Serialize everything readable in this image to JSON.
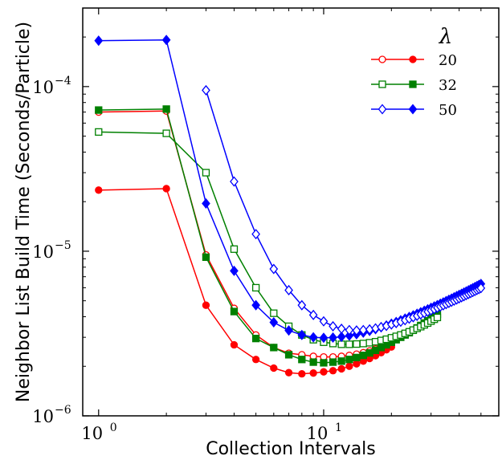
{
  "chart_data": {
    "type": "line",
    "xlabel": "Collection Intervals",
    "ylabel": "Neighbor List Build Time (Seconds/Particle)",
    "xscale": "log",
    "yscale": "log",
    "xlim": [
      0.85,
      60
    ],
    "ylim": [
      1e-06,
      0.0003
    ],
    "x_ticks": [
      {
        "base": "10",
        "exp": "0",
        "value": 1
      },
      {
        "base": "10",
        "exp": "1",
        "value": 10
      }
    ],
    "y_ticks": [
      {
        "base": "10",
        "exp": "−6",
        "value": 1e-06
      },
      {
        "base": "10",
        "exp": "−5",
        "value": 1e-05
      },
      {
        "base": "10",
        "exp": "−4",
        "value": 0.0001
      }
    ],
    "legend": {
      "title": "λ",
      "position": "top-right",
      "labels": [
        "20",
        "32",
        "50"
      ]
    },
    "series": [
      {
        "name": "20",
        "color": "#ff0000",
        "marker": "circle",
        "open": {
          "x": [
            1,
            2,
            3,
            4,
            5,
            6,
            7,
            8,
            9,
            10,
            11,
            12,
            13,
            14,
            15,
            16,
            17,
            18,
            19,
            20
          ],
          "y": [
            7e-05,
            7.1e-05,
            9.5e-06,
            4.5e-06,
            3.1e-06,
            2.6e-06,
            2.4e-06,
            2.35e-06,
            2.3e-06,
            2.28e-06,
            2.28e-06,
            2.3e-06,
            2.33e-06,
            2.37e-06,
            2.42e-06,
            2.48e-06,
            2.55e-06,
            2.62e-06,
            2.7e-06,
            2.8e-06
          ]
        },
        "filled": {
          "x": [
            1,
            2,
            3,
            4,
            5,
            6,
            7,
            8,
            9,
            10,
            11,
            12,
            13,
            14,
            15,
            16,
            17,
            18,
            19,
            20
          ],
          "y": [
            2.35e-05,
            2.4e-05,
            4.7e-06,
            2.7e-06,
            2.2e-06,
            1.95e-06,
            1.83e-06,
            1.8e-06,
            1.82e-06,
            1.85e-06,
            1.88e-06,
            1.93e-06,
            2e-06,
            2.07e-06,
            2.15e-06,
            2.23e-06,
            2.32e-06,
            2.42e-06,
            2.52e-06,
            2.62e-06
          ]
        }
      },
      {
        "name": "32",
        "color": "#008000",
        "marker": "square",
        "open": {
          "x": [
            1,
            2,
            3,
            4,
            5,
            6,
            7,
            8,
            9,
            10,
            11,
            12,
            13,
            14,
            15,
            16,
            17,
            18,
            19,
            20,
            21,
            22,
            23,
            24,
            25,
            26,
            27,
            28,
            29,
            30,
            31,
            32
          ],
          "y": [
            5.3e-05,
            5.2e-05,
            3e-05,
            1.03e-05,
            6e-06,
            4.2e-06,
            3.5e-06,
            3.1e-06,
            2.9e-06,
            2.8e-06,
            2.75e-06,
            2.72e-06,
            2.72e-06,
            2.73e-06,
            2.75e-06,
            2.78e-06,
            2.82e-06,
            2.87e-06,
            2.92e-06,
            2.98e-06,
            3.04e-06,
            3.1e-06,
            3.17e-06,
            3.24e-06,
            3.32e-06,
            3.4e-06,
            3.48e-06,
            3.57e-06,
            3.66e-06,
            3.76e-06,
            3.86e-06,
            3.96e-06
          ]
        },
        "filled": {
          "x": [
            1,
            2,
            3,
            4,
            5,
            6,
            7,
            8,
            9,
            10,
            11,
            12,
            13,
            14,
            15,
            16,
            17,
            18,
            19,
            20,
            21,
            22,
            23,
            24,
            25,
            26,
            27,
            28,
            29,
            30,
            31,
            32
          ],
          "y": [
            7.2e-05,
            7.3e-05,
            9.2e-06,
            4.3e-06,
            2.95e-06,
            2.6e-06,
            2.35e-06,
            2.2e-06,
            2.12e-06,
            2.1e-06,
            2.12e-06,
            2.15e-06,
            2.2e-06,
            2.26e-06,
            2.33e-06,
            2.41e-06,
            2.5e-06,
            2.6e-06,
            2.7e-06,
            2.8e-06,
            2.9e-06,
            3e-06,
            3.1e-06,
            3.2e-06,
            3.31e-06,
            3.42e-06,
            3.54e-06,
            3.66e-06,
            3.78e-06,
            3.9e-06,
            4.02e-06,
            4.14e-06
          ]
        }
      },
      {
        "name": "50",
        "color": "#0000ff",
        "marker": "diamond",
        "open": {
          "x": [
            3,
            4,
            5,
            6,
            7,
            8,
            9,
            10,
            11,
            12,
            13,
            14,
            15,
            16,
            17,
            18,
            19,
            20,
            21,
            22,
            23,
            24,
            25,
            26,
            27,
            28,
            29,
            30,
            31,
            32,
            33,
            34,
            35,
            36,
            37,
            38,
            39,
            40,
            41,
            42,
            43,
            44,
            45,
            46,
            47,
            48,
            49,
            50
          ],
          "y": [
            9.5e-05,
            2.65e-05,
            1.27e-05,
            7.8e-06,
            5.8e-06,
            4.7e-06,
            4.1e-06,
            3.75e-06,
            3.5e-06,
            3.38e-06,
            3.32e-06,
            3.3e-06,
            3.32e-06,
            3.35e-06,
            3.4e-06,
            3.46e-06,
            3.52e-06,
            3.59e-06,
            3.66e-06,
            3.73e-06,
            3.81e-06,
            3.89e-06,
            3.97e-06,
            4.05e-06,
            4.13e-06,
            4.21e-06,
            4.29e-06,
            4.37e-06,
            4.45e-06,
            4.53e-06,
            4.61e-06,
            4.69e-06,
            4.77e-06,
            4.85e-06,
            4.93e-06,
            5.01e-06,
            5.09e-06,
            5.17e-06,
            5.25e-06,
            5.33e-06,
            5.41e-06,
            5.49e-06,
            5.57e-06,
            5.65e-06,
            5.73e-06,
            5.81e-06,
            5.89e-06,
            5.97e-06
          ]
        },
        "filled": {
          "x": [
            1,
            2,
            3,
            4,
            5,
            6,
            7,
            8,
            9,
            10,
            11,
            12,
            13,
            14,
            15,
            16,
            17,
            18,
            19,
            20,
            21,
            22,
            23,
            24,
            25,
            26,
            27,
            28,
            29,
            30,
            31,
            32,
            33,
            34,
            35,
            36,
            37,
            38,
            39,
            40,
            41,
            42,
            43,
            44,
            45,
            46,
            47,
            48,
            49,
            50
          ],
          "y": [
            0.00019,
            0.000192,
            1.95e-05,
            7.6e-06,
            4.7e-06,
            3.7e-06,
            3.3e-06,
            3.1e-06,
            3e-06,
            2.98e-06,
            2.99e-06,
            3.02e-06,
            3.07e-06,
            3.13e-06,
            3.2e-06,
            3.28e-06,
            3.36e-06,
            3.45e-06,
            3.54e-06,
            3.63e-06,
            3.72e-06,
            3.81e-06,
            3.9e-06,
            3.99e-06,
            4.08e-06,
            4.17e-06,
            4.26e-06,
            4.35e-06,
            4.44e-06,
            4.53e-06,
            4.62e-06,
            4.71e-06,
            4.8e-06,
            4.89e-06,
            4.98e-06,
            5.07e-06,
            5.16e-06,
            5.25e-06,
            5.34e-06,
            5.43e-06,
            5.52e-06,
            5.61e-06,
            5.7e-06,
            5.79e-06,
            5.88e-06,
            5.97e-06,
            6.06e-06,
            6.15e-06,
            6.24e-06,
            6.33e-06
          ]
        }
      }
    ]
  }
}
